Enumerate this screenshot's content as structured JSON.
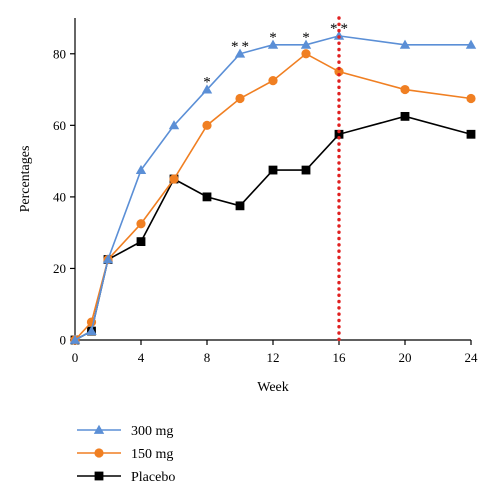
{
  "chart_data": {
    "type": "line",
    "xlabel": "Week",
    "ylabel": "Percentages",
    "xlim": [
      0,
      24
    ],
    "ylim": [
      0,
      90
    ],
    "x_ticks": [
      0,
      4,
      8,
      12,
      16,
      20,
      24
    ],
    "y_ticks": [
      0,
      20,
      40,
      60,
      80
    ],
    "grid": false,
    "legend_position": "bottom-left",
    "reference_line": {
      "x": 16,
      "style": "dotted",
      "color": "#e02020"
    },
    "series": [
      {
        "name": "300 mg",
        "color": "#5b8fd6",
        "marker": "triangle",
        "x": [
          0,
          1,
          2,
          4,
          6,
          8,
          10,
          12,
          14,
          16,
          20,
          24
        ],
        "y": [
          0,
          2.5,
          22.5,
          47.5,
          60,
          70,
          80,
          82.5,
          82.5,
          85,
          82.5,
          82.5
        ]
      },
      {
        "name": "150 mg",
        "color": "#f07f22",
        "marker": "circle",
        "x": [
          0,
          1,
          2,
          4,
          6,
          8,
          10,
          12,
          14,
          16,
          20,
          24
        ],
        "y": [
          0,
          5,
          22.5,
          32.5,
          45,
          60,
          67.5,
          72.5,
          80,
          75,
          70,
          67.5
        ]
      },
      {
        "name": "Placebo",
        "color": "#000000",
        "marker": "square",
        "x": [
          0,
          1,
          2,
          4,
          6,
          8,
          10,
          12,
          14,
          16,
          20,
          24
        ],
        "y": [
          0,
          2.5,
          22.5,
          27.5,
          45,
          40,
          37.5,
          47.5,
          47.5,
          57.5,
          62.5,
          57.5
        ]
      }
    ],
    "annotations": [
      {
        "x": 8,
        "text": "*"
      },
      {
        "x": 10,
        "text": "**"
      },
      {
        "x": 12,
        "text": "*"
      },
      {
        "x": 14,
        "text": "*"
      },
      {
        "x": 16,
        "text": "**"
      }
    ]
  }
}
